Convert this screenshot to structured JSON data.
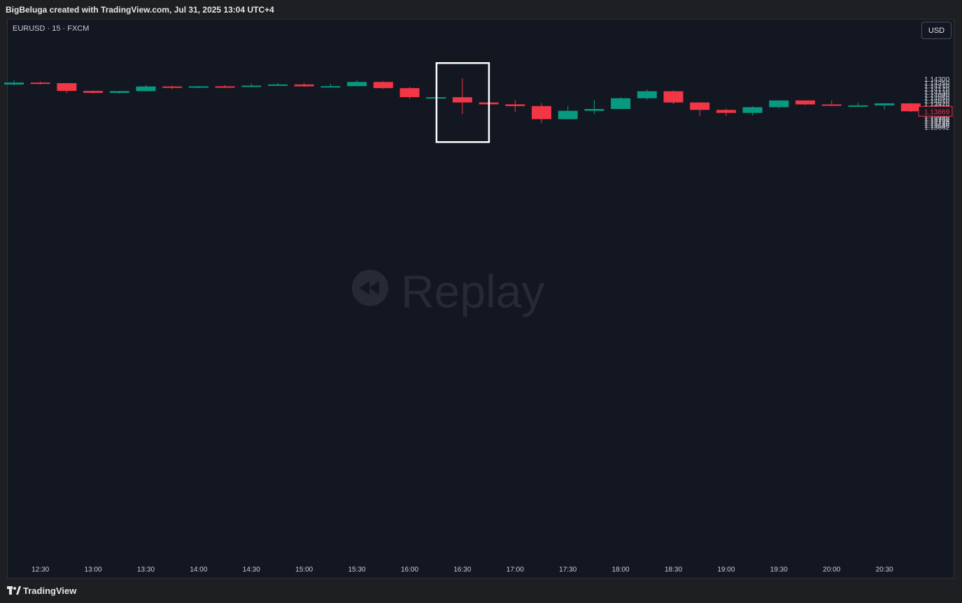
{
  "header": {
    "text": "BigBeluga created with TradingView.com, Jul 31, 2025 13:04 UTC+4"
  },
  "symbol": {
    "label": "EURUSD · 15 · FXCM"
  },
  "currency_button": {
    "label": "USD"
  },
  "watermark": {
    "text": "Replay"
  },
  "footer": {
    "brand": "TradingView"
  },
  "colors": {
    "up": "#089981",
    "down": "#f23645",
    "background": "#121722",
    "highlight_box": "#ffffff"
  },
  "chart_data": {
    "type": "candlestick",
    "symbol": "EURUSD",
    "interval": "15",
    "source": "FXCM",
    "price_axis_ticks": [
      "1.14300",
      "1.14250",
      "1.14210",
      "1.14170",
      "1.14130",
      "1.14090",
      "1.14050",
      "1.14010",
      "1.13970",
      "1.13930",
      "1.13900",
      "1.13840",
      "1.13810",
      "1.13785",
      "1.13760",
      "1.13735",
      "1.13710",
      "1.13686",
      "1.13662"
    ],
    "time_axis_labels": [
      "12:30",
      "13:00",
      "13:30",
      "14:00",
      "14:30",
      "15:00",
      "15:30",
      "16:00",
      "16:30",
      "17:00",
      "17:30",
      "18:00",
      "18:30",
      "19:00",
      "19:30",
      "20:00",
      "20:30"
    ],
    "last_price": "1.13869",
    "candles": [
      {
        "o": 1.14226,
        "h": 1.14285,
        "l": 1.14212,
        "c": 1.14252
      },
      {
        "o": 1.14252,
        "h": 1.14268,
        "l": 1.14226,
        "c": 1.14244
      },
      {
        "o": 1.14244,
        "h": 1.14244,
        "l": 1.14113,
        "c": 1.14141
      },
      {
        "o": 1.14141,
        "h": 1.14148,
        "l": 1.14106,
        "c": 1.14115
      },
      {
        "o": 1.14115,
        "h": 1.1414,
        "l": 1.14104,
        "c": 1.14138
      },
      {
        "o": 1.14138,
        "h": 1.1422,
        "l": 1.14132,
        "c": 1.142
      },
      {
        "o": 1.142,
        "h": 1.14212,
        "l": 1.14164,
        "c": 1.14193
      },
      {
        "o": 1.14193,
        "h": 1.14206,
        "l": 1.14178,
        "c": 1.14202
      },
      {
        "o": 1.14202,
        "h": 1.14218,
        "l": 1.14178,
        "c": 1.14197
      },
      {
        "o": 1.14197,
        "h": 1.14238,
        "l": 1.14192,
        "c": 1.14211
      },
      {
        "o": 1.14211,
        "h": 1.14246,
        "l": 1.14208,
        "c": 1.14227
      },
      {
        "o": 1.14227,
        "h": 1.14247,
        "l": 1.14193,
        "c": 1.14202
      },
      {
        "o": 1.14202,
        "h": 1.14237,
        "l": 1.14201,
        "c": 1.14204
      },
      {
        "o": 1.14204,
        "h": 1.14284,
        "l": 1.14204,
        "c": 1.1426
      },
      {
        "o": 1.1426,
        "h": 1.14269,
        "l": 1.14168,
        "c": 1.14178
      },
      {
        "o": 1.14178,
        "h": 1.14193,
        "l": 1.14036,
        "c": 1.14058
      },
      {
        "o": 1.14056,
        "h": 1.14163,
        "l": 1.14056,
        "c": 1.14057
      },
      {
        "o": 1.14057,
        "h": 1.14307,
        "l": 1.13832,
        "c": 1.13987
      },
      {
        "o": 1.13987,
        "h": 1.141,
        "l": 1.13957,
        "c": 1.13962
      },
      {
        "o": 1.13962,
        "h": 1.1402,
        "l": 1.13862,
        "c": 1.13939
      },
      {
        "o": 1.13939,
        "h": 1.13978,
        "l": 1.13712,
        "c": 1.13765
      },
      {
        "o": 1.13765,
        "h": 1.1394,
        "l": 1.13759,
        "c": 1.13876
      },
      {
        "o": 1.13876,
        "h": 1.14021,
        "l": 1.13832,
        "c": 1.139
      },
      {
        "o": 1.139,
        "h": 1.14059,
        "l": 1.13896,
        "c": 1.14043
      },
      {
        "o": 1.14043,
        "h": 1.14161,
        "l": 1.14021,
        "c": 1.14136
      },
      {
        "o": 1.14136,
        "h": 1.14151,
        "l": 1.13964,
        "c": 1.13987
      },
      {
        "o": 1.13987,
        "h": 1.1399,
        "l": 1.13804,
        "c": 1.13888
      },
      {
        "o": 1.13888,
        "h": 1.13907,
        "l": 1.13808,
        "c": 1.13848
      },
      {
        "o": 1.13848,
        "h": 1.13937,
        "l": 1.13812,
        "c": 1.13924
      },
      {
        "o": 1.13924,
        "h": 1.14018,
        "l": 1.1391,
        "c": 1.14014
      },
      {
        "o": 1.14014,
        "h": 1.14018,
        "l": 1.13952,
        "c": 1.13961
      },
      {
        "o": 1.13961,
        "h": 1.14014,
        "l": 1.13944,
        "c": 1.13947
      },
      {
        "o": 1.13948,
        "h": 1.13984,
        "l": 1.13939,
        "c": 1.13948
      },
      {
        "o": 1.13948,
        "h": 1.13977,
        "l": 1.13894,
        "c": 1.13975
      },
      {
        "o": 1.13975,
        "h": 1.1398,
        "l": 1.13857,
        "c": 1.13869
      }
    ],
    "highlighted_candle_index": 17
  }
}
